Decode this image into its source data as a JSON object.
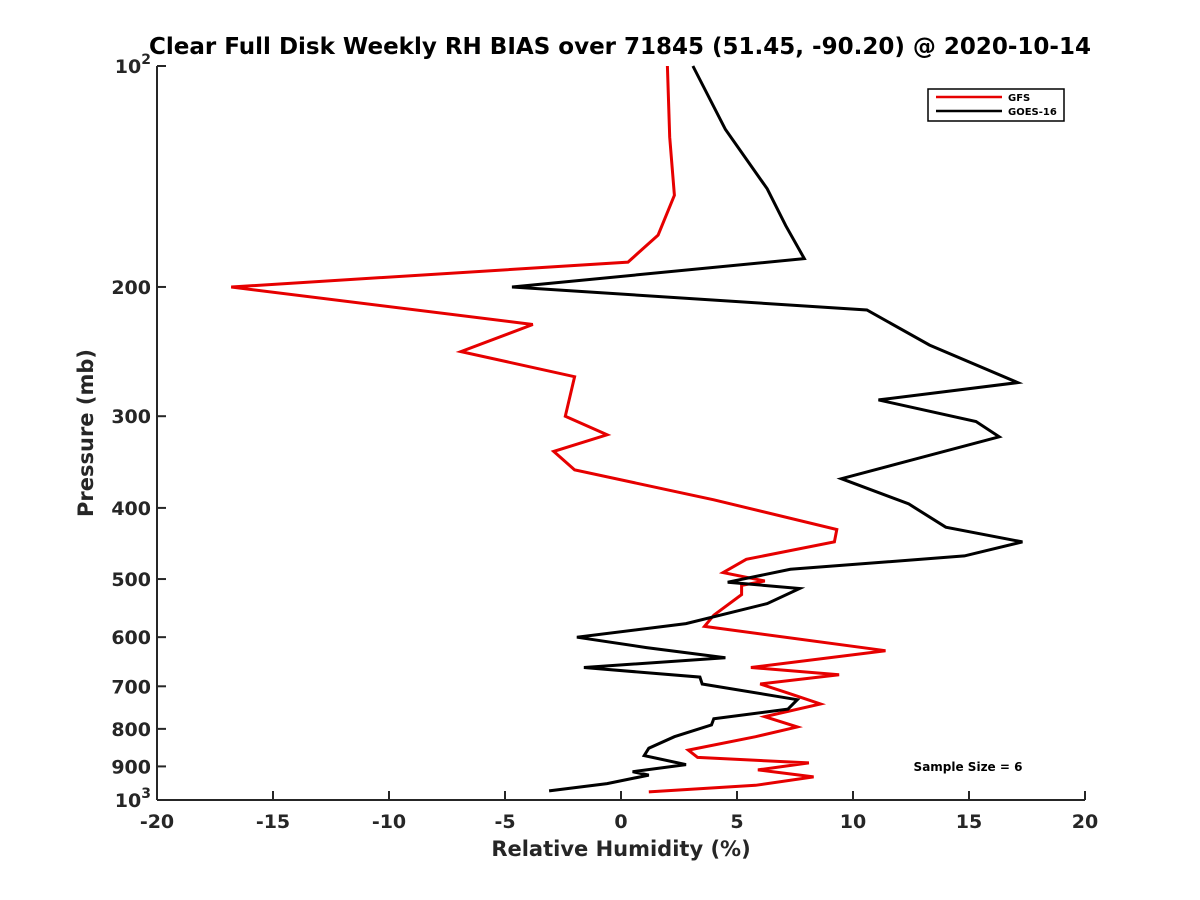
{
  "chart_data": {
    "type": "line",
    "title": "Clear Full Disk Weekly RH BIAS over 71845 (51.45, -90.20) @ 2020-10-14",
    "xlabel": "Relative Humidity (%)",
    "ylabel": "Pressure (mb)",
    "xlim": [
      -20,
      20
    ],
    "ylim": [
      100,
      1000
    ],
    "y_scale": "log",
    "y_reversed": true,
    "grid": false,
    "legend_position": "top-right",
    "x_ticks": [
      "-20",
      "-15",
      "-10",
      "-5",
      "0",
      "5",
      "10",
      "15",
      "20"
    ],
    "y_ticks": [
      {
        "value": 100,
        "base": "10",
        "exp": "2"
      },
      {
        "value": 200,
        "label": "200"
      },
      {
        "value": 300,
        "label": "300"
      },
      {
        "value": 400,
        "label": "400"
      },
      {
        "value": 500,
        "label": "500"
      },
      {
        "value": 600,
        "label": "600"
      },
      {
        "value": 700,
        "label": "700"
      },
      {
        "value": 800,
        "label": "800"
      },
      {
        "value": 900,
        "label": "900"
      },
      {
        "value": 1000,
        "base": "10",
        "exp": "3"
      }
    ],
    "annotation": "Sample Size = 6",
    "series": [
      {
        "name": "GFS",
        "color": "#e60000",
        "points": [
          [
            2.0,
            100
          ],
          [
            2.1,
            125
          ],
          [
            2.3,
            150
          ],
          [
            1.6,
            170
          ],
          [
            0.3,
            185
          ],
          [
            -16.8,
            200
          ],
          [
            -3.8,
            225
          ],
          [
            -6.9,
            245
          ],
          [
            -2.0,
            265
          ],
          [
            -2.4,
            300
          ],
          [
            -0.6,
            318
          ],
          [
            -2.9,
            335
          ],
          [
            -2.0,
            355
          ],
          [
            4.0,
            390
          ],
          [
            9.3,
            428
          ],
          [
            9.2,
            445
          ],
          [
            5.4,
            470
          ],
          [
            4.4,
            490
          ],
          [
            6.2,
            503
          ],
          [
            5.2,
            510
          ],
          [
            5.2,
            525
          ],
          [
            4.0,
            560
          ],
          [
            3.6,
            580
          ],
          [
            11.4,
            626
          ],
          [
            5.6,
            660
          ],
          [
            9.4,
            675
          ],
          [
            6.0,
            695
          ],
          [
            7.2,
            715
          ],
          [
            8.6,
            740
          ],
          [
            6.2,
            770
          ],
          [
            7.6,
            795
          ],
          [
            5.8,
            820
          ],
          [
            2.9,
            855
          ],
          [
            3.3,
            875
          ],
          [
            8.1,
            890
          ],
          [
            5.9,
            910
          ],
          [
            8.3,
            930
          ],
          [
            5.8,
            955
          ],
          [
            1.2,
            975
          ]
        ]
      },
      {
        "name": "GOES-16",
        "color": "#000000",
        "points": [
          [
            3.1,
            100
          ],
          [
            4.5,
            122
          ],
          [
            6.3,
            147
          ],
          [
            7.1,
            165
          ],
          [
            7.9,
            183
          ],
          [
            -4.7,
            200
          ],
          [
            10.6,
            215
          ],
          [
            13.3,
            240
          ],
          [
            17.1,
            270
          ],
          [
            11.1,
            285
          ],
          [
            15.3,
            305
          ],
          [
            16.3,
            320
          ],
          [
            12.4,
            345
          ],
          [
            9.5,
            365
          ],
          [
            12.4,
            395
          ],
          [
            14.0,
            425
          ],
          [
            17.3,
            445
          ],
          [
            14.8,
            465
          ],
          [
            7.3,
            485
          ],
          [
            4.6,
            505
          ],
          [
            7.7,
            515
          ],
          [
            6.3,
            540
          ],
          [
            2.8,
            575
          ],
          [
            -1.9,
            600
          ],
          [
            1.1,
            620
          ],
          [
            4.5,
            640
          ],
          [
            -1.6,
            660
          ],
          [
            3.4,
            680
          ],
          [
            3.5,
            695
          ],
          [
            7.6,
            730
          ],
          [
            7.2,
            752
          ],
          [
            4.0,
            775
          ],
          [
            3.9,
            790
          ],
          [
            2.3,
            820
          ],
          [
            1.2,
            850
          ],
          [
            1.0,
            870
          ],
          [
            2.8,
            895
          ],
          [
            0.5,
            915
          ],
          [
            1.2,
            925
          ],
          [
            -0.6,
            950
          ],
          [
            -3.1,
            972
          ]
        ]
      }
    ]
  }
}
